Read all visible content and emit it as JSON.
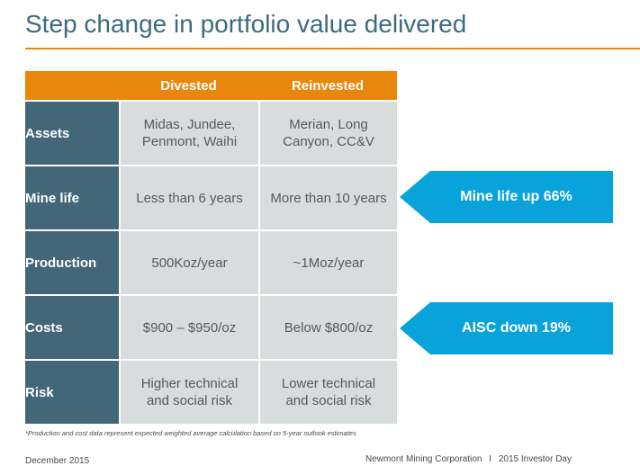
{
  "title": "Step change in portfolio value delivered",
  "table": {
    "columns": [
      "",
      "Divested",
      "Reinvested"
    ],
    "rows": [
      {
        "label": "Assets",
        "divested": [
          "Midas, Jundee,",
          "Penmont, Waihi"
        ],
        "reinvested": [
          "Merian, Long",
          "Canyon, CC&V"
        ]
      },
      {
        "label": "Mine life",
        "divested": [
          "Less than 6 years"
        ],
        "reinvested": [
          "More than 10 years"
        ]
      },
      {
        "label": "Production",
        "divested": [
          "500Koz/year"
        ],
        "reinvested": [
          "~1Moz/year"
        ]
      },
      {
        "label": "Costs",
        "divested": [
          "$900 – $950/oz"
        ],
        "reinvested": [
          "Below $800/oz"
        ]
      },
      {
        "label": "Risk",
        "divested": [
          "Higher technical",
          "and social risk"
        ],
        "reinvested": [
          "Lower technical",
          "and social risk"
        ]
      }
    ]
  },
  "callouts": {
    "mine_life": "Mine life up 66%",
    "aisc": "AISC down 19%"
  },
  "footnote": "*Production and cost data represent expected weighted average calculation based on 5-year outlook estimates",
  "footer": {
    "date": "December 2015",
    "company": "Newmont Mining Corporation",
    "separator": "I",
    "event": "2015 Investor Day"
  },
  "colors": {
    "accent_orange": "#e8870b",
    "label_blue": "#436778",
    "cell_gray": "#d8dcdd",
    "callout_blue": "#09a3dc",
    "title_blue": "#3d6b80"
  }
}
